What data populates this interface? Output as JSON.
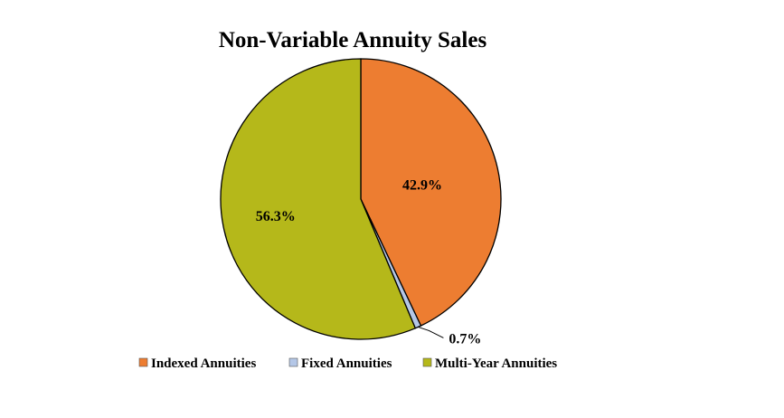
{
  "chart_data": {
    "type": "pie",
    "title": "Non-Variable Annuity Sales",
    "slices": [
      {
        "name": "Indexed Annuities",
        "value": 42.9,
        "label": "42.9%",
        "color": "#ED7D31"
      },
      {
        "name": "Fixed Annuities",
        "value": 0.7,
        "label": "0.7%",
        "color": "#B4C7E7"
      },
      {
        "name": "Multi-Year Annuities",
        "value": 56.3,
        "label": "56.3%",
        "color": "#B5B81A"
      }
    ],
    "legend_position": "bottom"
  }
}
